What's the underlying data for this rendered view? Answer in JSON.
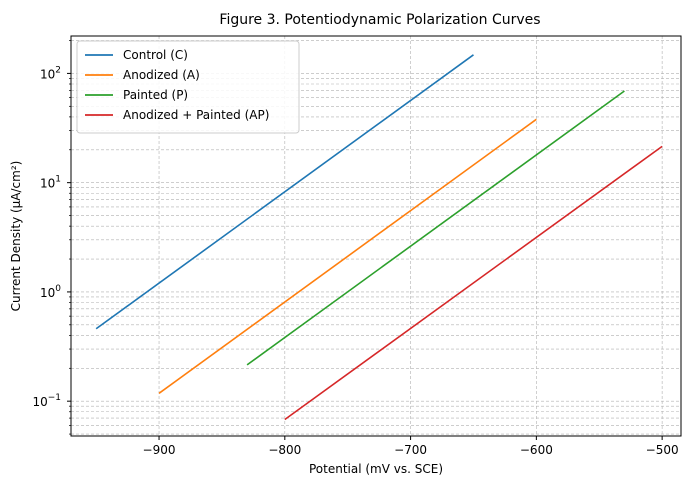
{
  "chart_data": {
    "type": "line",
    "title": "Figure 3. Potentiodynamic Polarization Curves",
    "xlabel": "Potential (mV vs. SCE)",
    "ylabel": "Current Density (μA/cm²)",
    "xscale": "linear",
    "yscale": "log",
    "xlim": [
      -970,
      -485
    ],
    "ylim": [
      0.048,
      220
    ],
    "xticks": [
      -900,
      -800,
      -700,
      -600,
      -500
    ],
    "xtick_labels": [
      "−900",
      "−800",
      "−700",
      "−600",
      "−500"
    ],
    "yticks": [
      0.1,
      1,
      10,
      100
    ],
    "ytick_labels": [
      {
        "base": "10",
        "exp": "−1"
      },
      {
        "base": "10",
        "exp": "0"
      },
      {
        "base": "10",
        "exp": "1"
      },
      {
        "base": "10",
        "exp": "2"
      }
    ],
    "grid": true,
    "legend_position": "top-left",
    "series": [
      {
        "name": "Control (C)",
        "color": "#1f77b4",
        "x": [
          -950,
          -650
        ],
        "y": [
          0.46,
          148
        ]
      },
      {
        "name": "Anodized (A)",
        "color": "#ff7f0e",
        "x": [
          -900,
          -600
        ],
        "y": [
          0.118,
          38
        ]
      },
      {
        "name": "Painted (P)",
        "color": "#2ca02c",
        "x": [
          -830,
          -530
        ],
        "y": [
          0.215,
          69
        ]
      },
      {
        "name": "Anodized + Painted (AP)",
        "color": "#d62728",
        "x": [
          -800,
          -500
        ],
        "y": [
          0.068,
          21.5
        ]
      }
    ]
  }
}
